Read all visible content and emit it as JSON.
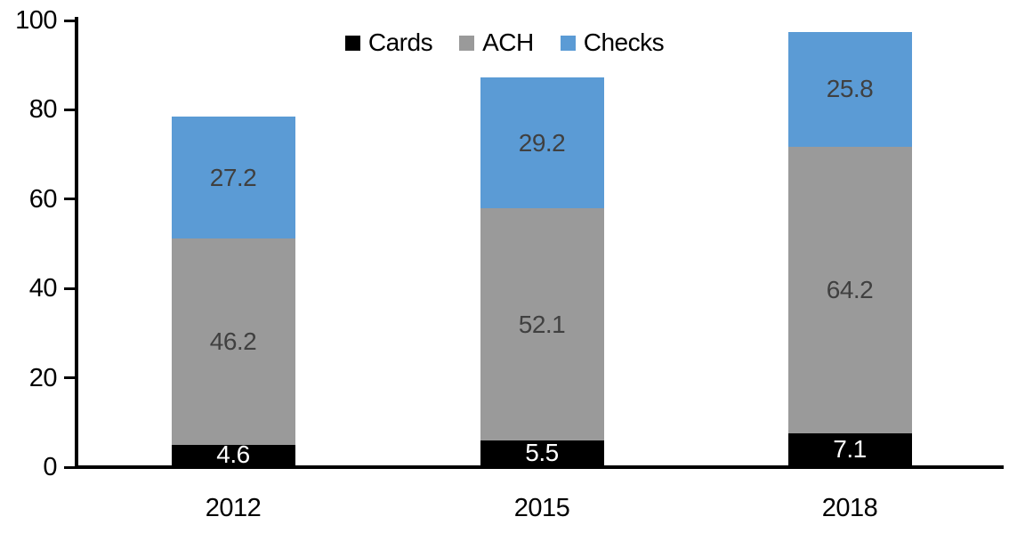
{
  "chart_data": {
    "type": "bar",
    "stacked": true,
    "title": "",
    "categories": [
      "2012",
      "2015",
      "2018"
    ],
    "series": [
      {
        "name": "Cards",
        "color": "#000000",
        "label_color": "#ffffff",
        "values": [
          4.6,
          5.5,
          7.1
        ]
      },
      {
        "name": "ACH",
        "color": "#9a9a9a",
        "label_color": "#404040",
        "values": [
          46.2,
          52.1,
          64.2
        ]
      },
      {
        "name": "Checks",
        "color": "#5b9bd5",
        "label_color": "#404040",
        "values": [
          27.2,
          29.2,
          25.8
        ]
      }
    ],
    "totals": [
      78.0,
      86.8,
      97.1
    ],
    "ylim": [
      0,
      100
    ],
    "yticks": [
      0,
      20,
      40,
      60,
      80,
      100
    ],
    "xlabel": "",
    "ylabel": "",
    "legend_position": "top-center",
    "grid": false,
    "axis_color": "#000000",
    "background_color": "#ffffff",
    "value_decimals": 1
  }
}
